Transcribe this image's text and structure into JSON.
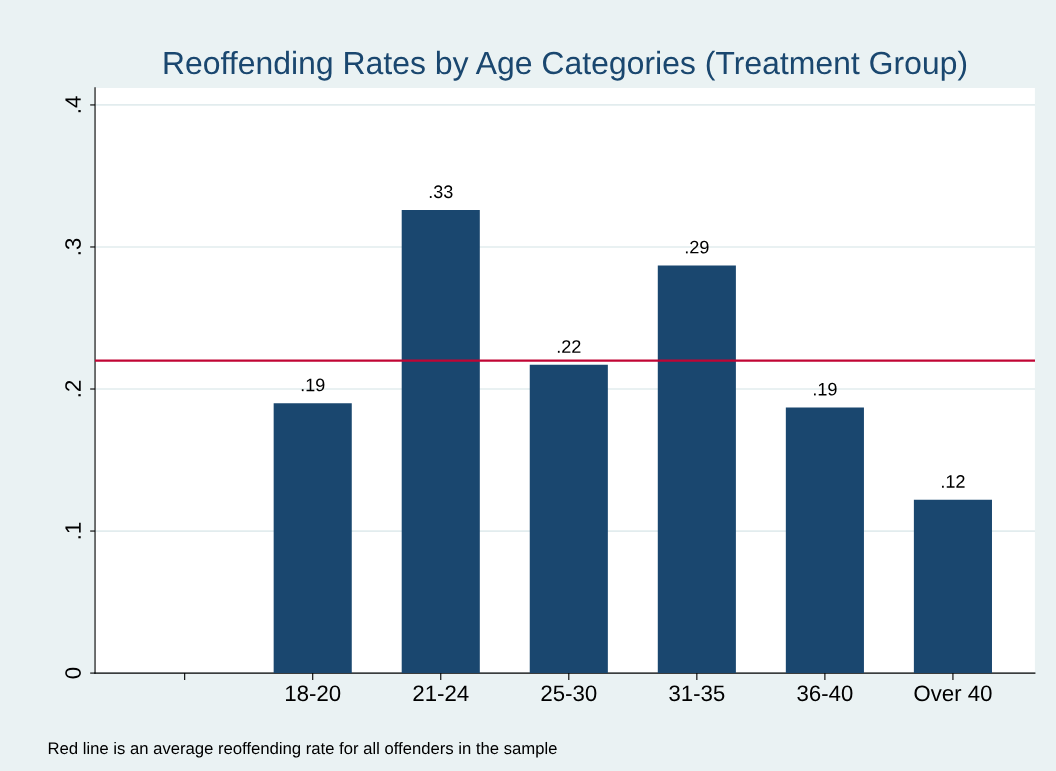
{
  "chart_data": {
    "type": "bar",
    "title": "Reoffending Rates by Age Categories (Treatment Group)",
    "categories": [
      null,
      "18-20",
      "21-24",
      "25-30",
      "31-35",
      "36-40",
      "Over 40"
    ],
    "values": [
      null,
      0.19,
      0.326,
      0.217,
      0.287,
      0.187,
      0.122
    ],
    "value_labels": [
      null,
      ".19",
      ".33",
      ".22",
      ".29",
      ".19",
      ".12"
    ],
    "color": "#1a476f",
    "ylim": [
      0,
      0.412
    ],
    "yticks": [
      0,
      {
        "value": 0.1,
        "label": ".1"
      },
      {
        "value": 0.2,
        "label": ".2"
      },
      {
        "value": 0.3,
        "label": ".3"
      },
      {
        "value": 0.4,
        "label": ".4"
      }
    ],
    "grid": "y",
    "ref_lines": [
      {
        "axis": "y",
        "value": 0.22,
        "label": null,
        "color": "#c10534"
      }
    ],
    "annotations": [
      "Red line is an average reoffending rate for all offenders in the sample"
    ]
  }
}
